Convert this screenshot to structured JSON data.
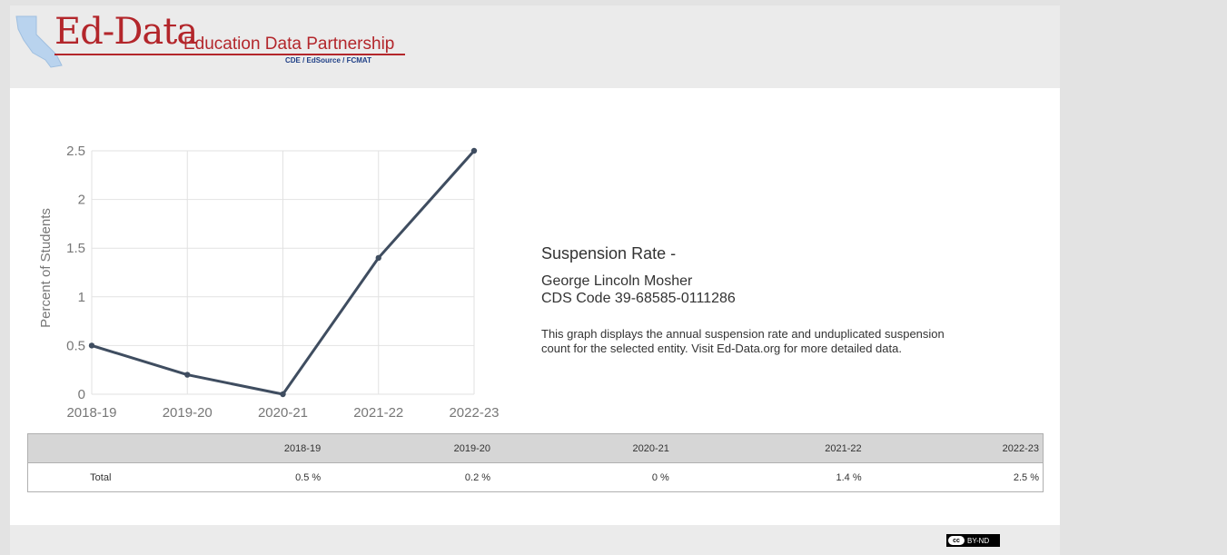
{
  "logo": {
    "wordmark": "Ed-Data",
    "partnership": "Education Data Partnership",
    "partners": "CDE / EdSource / FCMAT",
    "brand_red": "#b3262b",
    "brand_blue": "#1f3f86",
    "map_blue": "#b9d3ee"
  },
  "chart_data": {
    "type": "line",
    "categories": [
      "2018-19",
      "2019-20",
      "2020-21",
      "2021-22",
      "2022-23"
    ],
    "series": [
      {
        "values": [
          0.5,
          0.2,
          0,
          1.4,
          2.5
        ],
        "color": "#3f4d60"
      }
    ],
    "ylabel": "Percent of Students",
    "yticks": [
      0,
      0.5,
      1,
      1.5,
      2,
      2.5
    ],
    "ytick_labels": [
      "0",
      "0.5",
      "1",
      "1.5",
      "2",
      "2.5"
    ],
    "ylim": [
      0,
      2.5
    ],
    "grid": true
  },
  "info": {
    "title": "Suspension Rate -",
    "school_name": "George Lincoln Mosher",
    "cds_code": "CDS Code 39-68585-0111286",
    "description": "This graph displays the annual suspension rate and unduplicated suspension count for the selected entity. Visit Ed-Data.org for more detailed data."
  },
  "table": {
    "headers": [
      "",
      "2018-19",
      "2019-20",
      "2020-21",
      "2021-22",
      "2022-23"
    ],
    "rows": [
      {
        "label": "Total",
        "values": [
          "0.5 %",
          "0.2 %",
          "0 %",
          "1.4 %",
          "2.5 %"
        ]
      }
    ]
  },
  "footer": {
    "license": "BY-ND",
    "cc_mark": "cc"
  }
}
